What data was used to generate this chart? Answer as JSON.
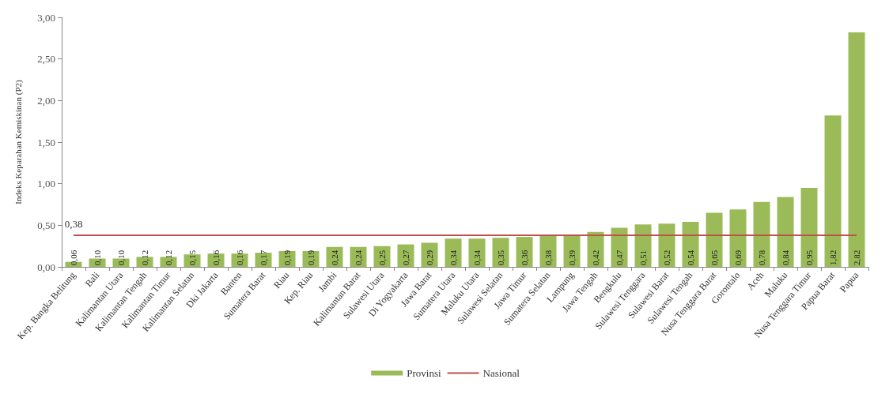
{
  "chart_data": {
    "type": "bar",
    "ylabel": "Indeks Keparahan Kemiskinan (P2)",
    "categories": [
      "Kep. Bangka Belitung",
      "Bali",
      "Kalimantan Utara",
      "Kalimantan Tengah",
      "Kalimantan Timur",
      "Kalimantan Selatan",
      "Dki Jakarta",
      "Banten",
      "Sumatera Barat",
      "Riau",
      "Kep. Riau",
      "Jambi",
      "Kalimantan Barat",
      "Sulawesi Utara",
      "Di Yogyakarta",
      "Jawa Barat",
      "Sumatera Utara",
      "Maluku Utara",
      "Sulawesi Selatan",
      "Jawa Timur",
      "Sumatera Selatan",
      "Lampung",
      "Jawa Tengah",
      "Bengkulu",
      "Sulawesi Tenggara",
      "Sulawesi Barat",
      "Sulawesi Tengah",
      "Nusa Tenggara Barat",
      "Gorontalo",
      "Aceh",
      "Maluku",
      "Nusa Tenggara Timur",
      "Papua Barat",
      "Papua"
    ],
    "series": [
      {
        "name": "Provinsi",
        "color": "#9bbb59",
        "values": [
          0.06,
          0.1,
          0.1,
          0.12,
          0.12,
          0.15,
          0.16,
          0.16,
          0.17,
          0.19,
          0.19,
          0.24,
          0.24,
          0.25,
          0.27,
          0.29,
          0.34,
          0.34,
          0.35,
          0.36,
          0.38,
          0.39,
          0.42,
          0.47,
          0.51,
          0.52,
          0.54,
          0.65,
          0.69,
          0.78,
          0.84,
          0.95,
          1.82,
          2.82
        ],
        "value_labels": [
          "0,06",
          "0,10",
          "0,10",
          "0,12",
          "0,12",
          "0,15",
          "0,16",
          "0,16",
          "0,17",
          "0,19",
          "0,19",
          "0,24",
          "0,24",
          "0,25",
          "0,27",
          "0,29",
          "0,34",
          "0,34",
          "0,35",
          "0,36",
          "0,38",
          "0,39",
          "0,42",
          "0,47",
          "0,51",
          "0,52",
          "0,54",
          "0,65",
          "0,69",
          "0,78",
          "0,84",
          "0,95",
          "1,82",
          "2,82"
        ]
      },
      {
        "name": "Nasional",
        "type": "line",
        "color": "#c0504d",
        "values": [
          0.38,
          0.38,
          0.38,
          0.38,
          0.38,
          0.38,
          0.38,
          0.38,
          0.38,
          0.38,
          0.38,
          0.38,
          0.38,
          0.38,
          0.38,
          0.38,
          0.38,
          0.38,
          0.38,
          0.38,
          0.38,
          0.38,
          0.38,
          0.38,
          0.38,
          0.38,
          0.38,
          0.38,
          0.38,
          0.38,
          0.38,
          0.38,
          0.38,
          0.38
        ],
        "value_labels": [
          "0,38",
          null,
          null,
          null,
          null,
          null,
          null,
          null,
          null,
          null,
          null,
          null,
          null,
          null,
          null,
          null,
          null,
          null,
          null,
          null,
          null,
          null,
          null,
          null,
          null,
          null,
          null,
          null,
          null,
          null,
          null,
          null,
          null,
          null
        ]
      }
    ],
    "ylim": [
      0,
      3
    ],
    "yticks": [
      {
        "value": 0,
        "label": "0,00"
      },
      {
        "value": 0.5,
        "label": "0,50"
      },
      {
        "value": 1,
        "label": "1,00"
      },
      {
        "value": 1.5,
        "label": "1,50"
      },
      {
        "value": 2,
        "label": "2,00"
      },
      {
        "value": 2.5,
        "label": "2,50"
      },
      {
        "value": 3,
        "label": "3,00"
      }
    ],
    "grid": false,
    "legend": "bottom",
    "marker": "none"
  }
}
